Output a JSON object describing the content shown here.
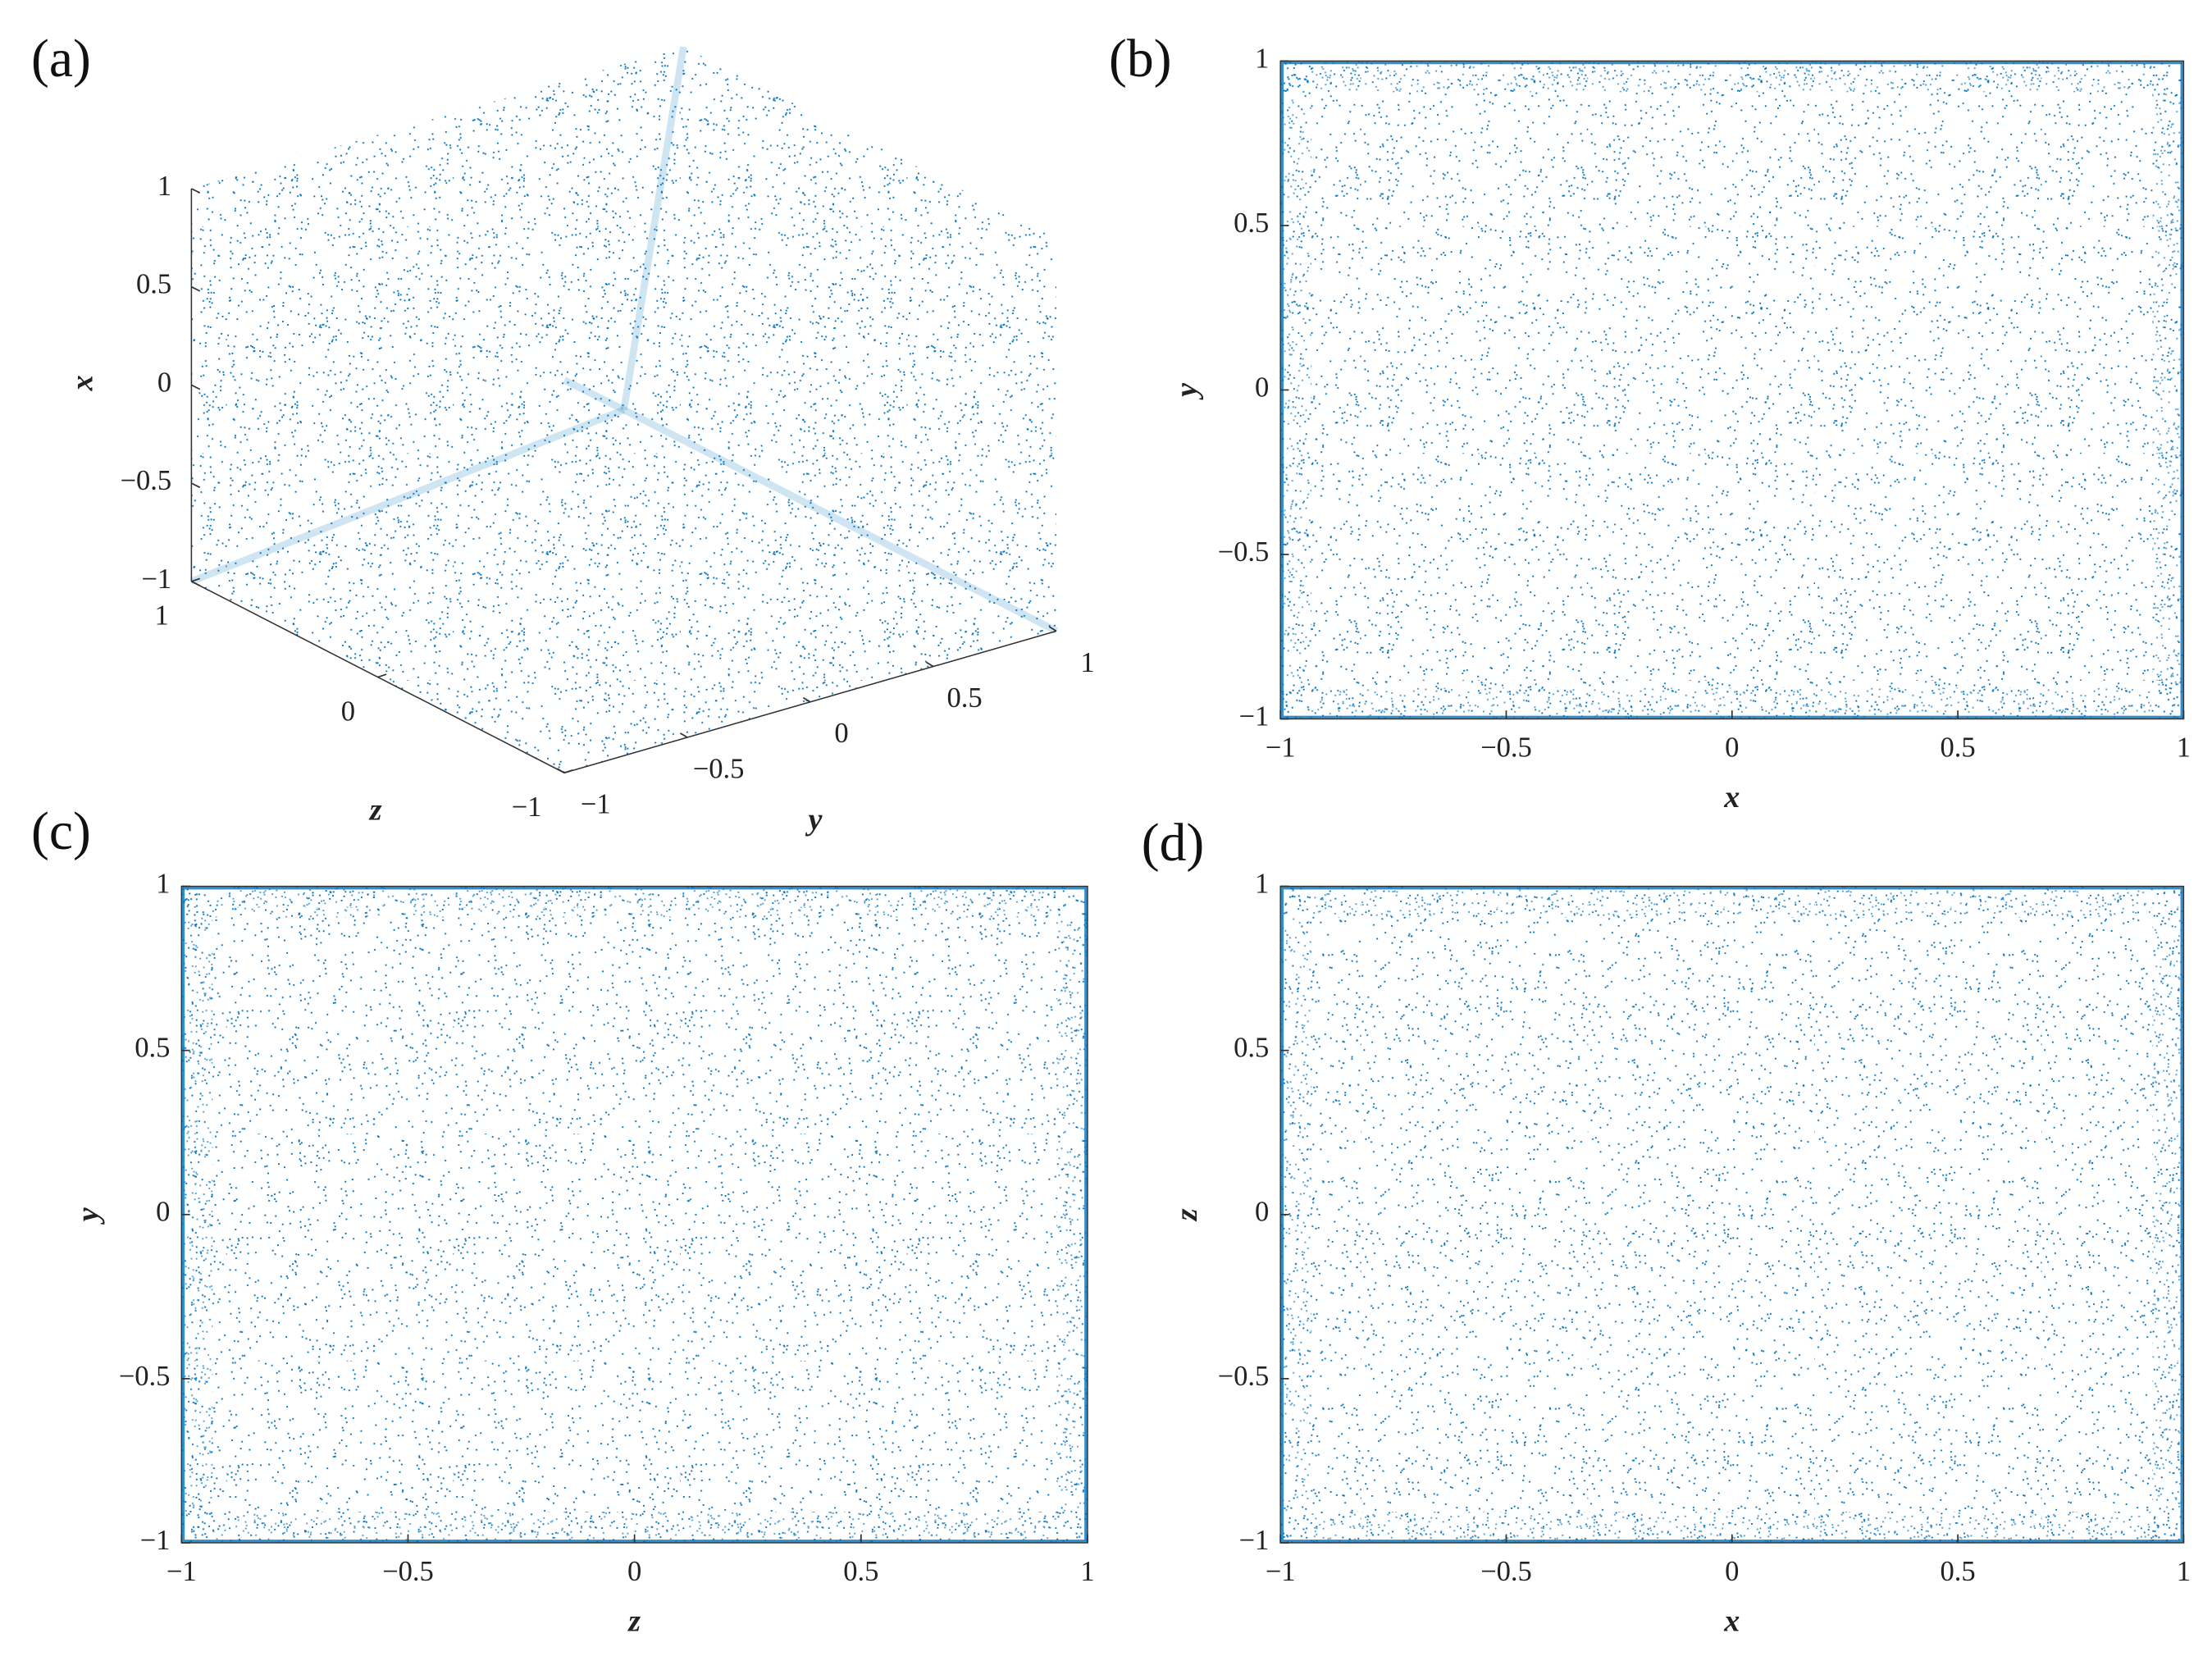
{
  "chart_data": [
    {
      "type": "scatter3d",
      "panel_label": "(a)",
      "color": "#0072bd",
      "x_label": "x",
      "y_label": "y",
      "z_label": "z",
      "xlim": [
        -1,
        1
      ],
      "ylim": [
        -1,
        1
      ],
      "zlim": [
        -1,
        1
      ],
      "xticks": [
        {
          "value": -1,
          "label": "−1"
        },
        {
          "value": -0.5,
          "label": "−0.5"
        },
        0,
        0.5,
        1
      ],
      "yticks": [
        {
          "value": -1,
          "label": "−1"
        },
        {
          "value": -0.5,
          "label": "−0.5"
        },
        0,
        0.5,
        1
      ],
      "zticks": [
        {
          "value": -1,
          "label": "−1"
        },
        0,
        1
      ]
    },
    {
      "type": "scatter",
      "panel_label": "(b)",
      "color": "#0072bd",
      "x_label": "x",
      "y_label": "y",
      "xlim": [
        -1,
        1
      ],
      "ylim": [
        -1,
        1
      ],
      "xticks": [
        {
          "value": -1,
          "label": "−1"
        },
        {
          "value": -0.5,
          "label": "−0.5"
        },
        0,
        0.5,
        1
      ],
      "yticks": [
        {
          "value": -1,
          "label": "−1"
        },
        {
          "value": -0.5,
          "label": "−0.5"
        },
        0,
        0.5,
        1
      ]
    },
    {
      "type": "scatter",
      "panel_label": "(c)",
      "color": "#0072bd",
      "x_label": "z",
      "y_label": "y",
      "xlim": [
        -1,
        1
      ],
      "ylim": [
        -1,
        1
      ],
      "xticks": [
        {
          "value": -1,
          "label": "−1"
        },
        {
          "value": -0.5,
          "label": "−0.5"
        },
        0,
        0.5,
        1
      ],
      "yticks": [
        {
          "value": -1,
          "label": "−1"
        },
        {
          "value": -0.5,
          "label": "−0.5"
        },
        0,
        0.5,
        1
      ]
    },
    {
      "type": "scatter",
      "panel_label": "(d)",
      "color": "#0072bd",
      "x_label": "x",
      "y_label": "z",
      "xlim": [
        -1,
        1
      ],
      "ylim": [
        -1,
        1
      ],
      "xticks": [
        {
          "value": -1,
          "label": "−1"
        },
        {
          "value": -0.5,
          "label": "−0.5"
        },
        0,
        0.5,
        1
      ],
      "yticks": [
        {
          "value": -1,
          "label": "−1"
        },
        {
          "value": -0.5,
          "label": "−0.5"
        },
        0,
        0.5,
        1
      ]
    }
  ]
}
